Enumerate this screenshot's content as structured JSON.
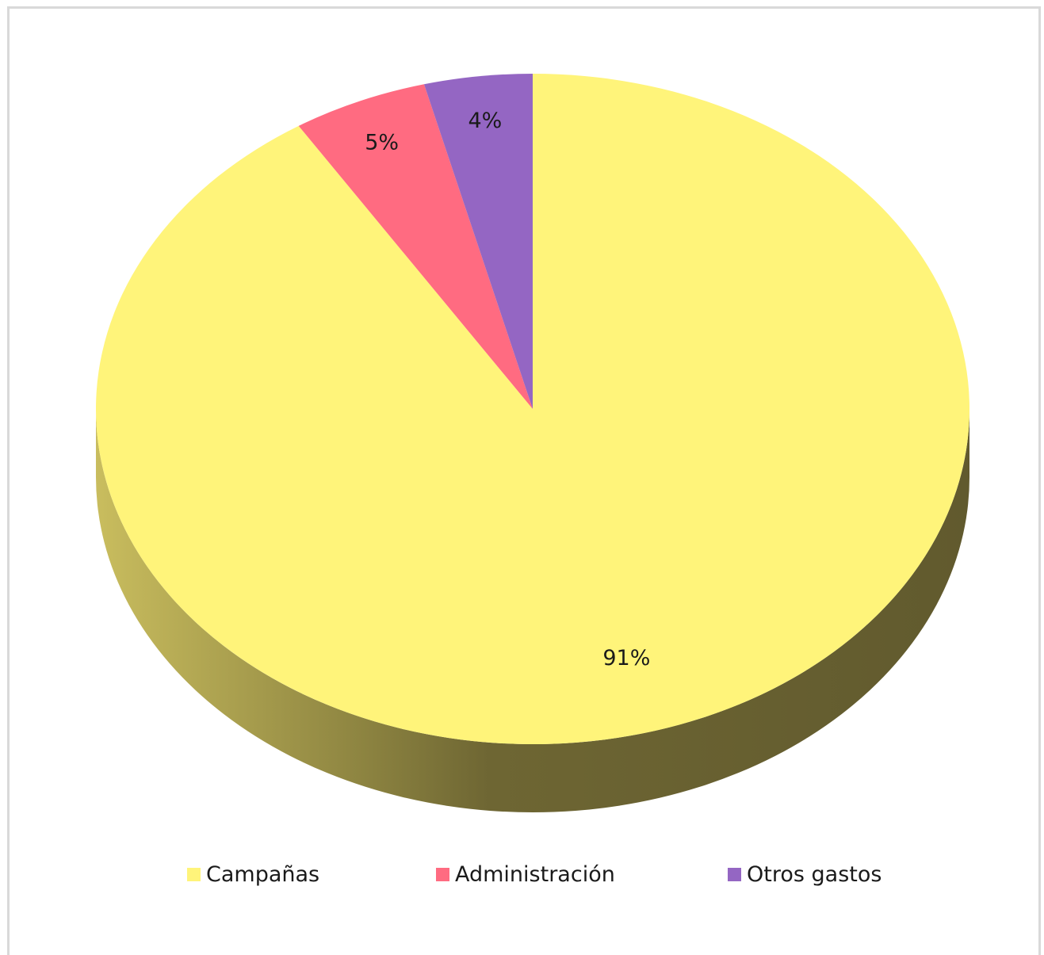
{
  "chart_data": {
    "type": "pie",
    "categories": [
      "Campañas",
      "Administración",
      "Otros gastos"
    ],
    "values": [
      91,
      5,
      4
    ],
    "labels": [
      "91%",
      "5%",
      "4%"
    ],
    "colors": [
      "#FFF47A",
      "#FF6B81",
      "#9466C3"
    ],
    "legend_position": "bottom",
    "style": "3d"
  }
}
